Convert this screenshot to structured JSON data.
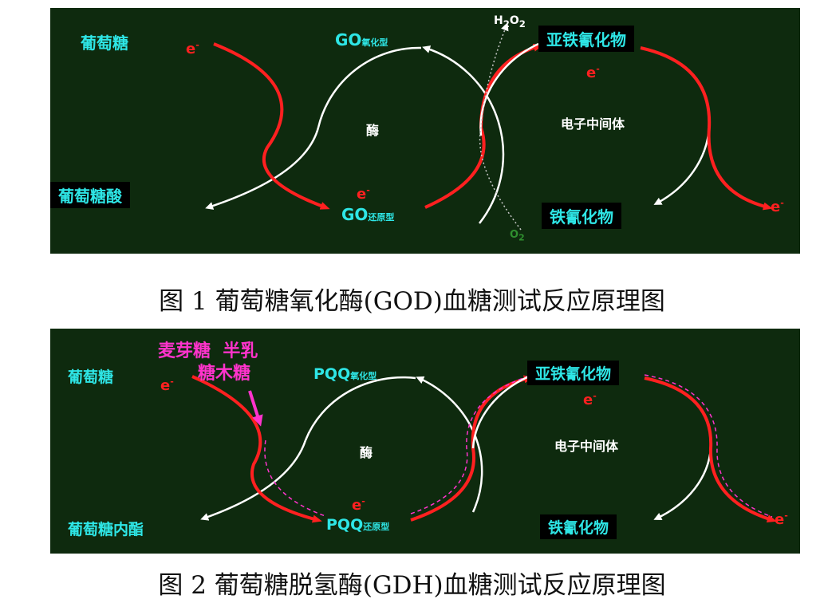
{
  "figure1": {
    "caption": "图 1 葡萄糖氧化酶(GOD)血糖测试反应原理图",
    "substrate": "葡萄糖",
    "product": "葡萄糖酸",
    "enzyme_ox_main": "GO",
    "enzyme_ox_sub": "氧化型",
    "enzyme_red_main": "GO",
    "enzyme_red_sub": "还原型",
    "enzyme_label": "酶",
    "mediator_label": "电子中间体",
    "ferricyanide": "铁氰化物",
    "ferrocyanide": "亚铁氰化物",
    "electron": "e",
    "electron_sup": "-",
    "h2o2_a": "H",
    "h2o2_b": "2",
    "h2o2_c": "O",
    "h2o2_d": "2",
    "o2_a": "O",
    "o2_b": "2"
  },
  "figure2": {
    "caption": "图 2 葡萄糖脱氢酶(GDH)血糖测试反应原理图",
    "substrate": "葡萄糖",
    "product": "葡萄糖内酯",
    "interferent_line1": "麦芽糖  半乳",
    "interferent_line2": "糖木糖",
    "enzyme_ox_main": "PQQ",
    "enzyme_ox_sub": "氧化型",
    "enzyme_red_main": "PQQ",
    "enzyme_red_sub": "还原型",
    "enzyme_label": "酶",
    "mediator_label": "电子中间体",
    "ferricyanide": "铁氰化物",
    "ferrocyanide": "亚铁氰化物",
    "electron": "e",
    "electron_sup": "-"
  },
  "colors": {
    "panel_bg": "#0e2a0e",
    "label_cyan": "#2ee6e6",
    "electron_red": "#ff2020",
    "interferent_magenta": "#ff33cc"
  }
}
